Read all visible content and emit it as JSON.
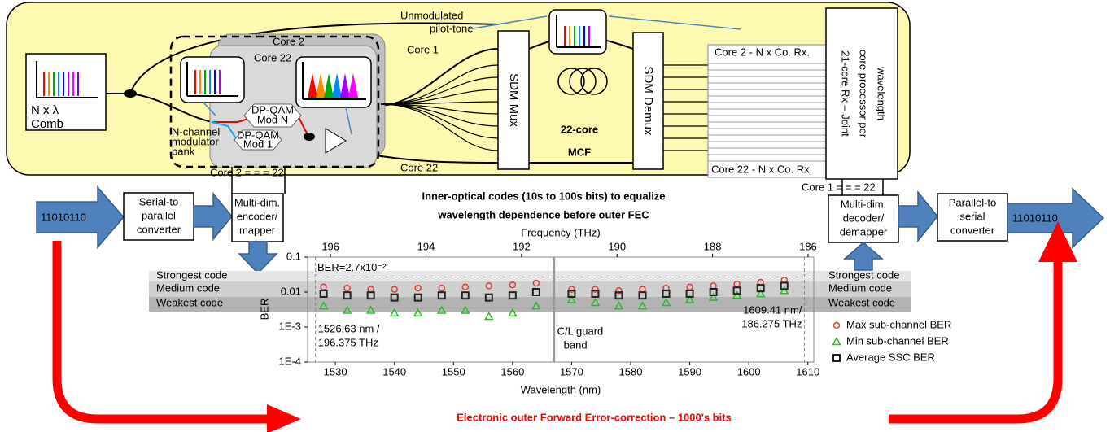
{
  "diagram": {
    "comb": [
      "N x λ",
      "Comb"
    ],
    "core2_top": "Core 2",
    "core22_top": "Core 22",
    "mod_n": [
      "DP-QAM",
      "Mod N"
    ],
    "mod_1": [
      "DP-QAM",
      "Mod 1"
    ],
    "modulator_bank": [
      "N-channel",
      "modulator",
      "bank"
    ],
    "pilot_tone": [
      "Unmodulated",
      "pilot-tone"
    ],
    "core1": "Core 1",
    "core22": "Core 22",
    "sdm_mux": "SDM Mux",
    "sdm_demux": "SDM Demux",
    "mcf": [
      "22-core",
      "MCF"
    ],
    "rx_top": "Core 2 - N x Co. Rx.",
    "rx_bottom": "Core  22 - N x Co. Rx.",
    "joint_rx": [
      "21-core Rx – Joint",
      "core processor per",
      "wavelength"
    ],
    "tx_cores": "Core 2 = = = 22",
    "rx_cores": "Core 1 = = = 22",
    "input_bits": "11010110",
    "output_bits": "11010110",
    "serial_parallel": [
      "Serial-to",
      "parallel",
      "converter"
    ],
    "encoder": [
      "Multi-dim.",
      "encoder/",
      "mapper"
    ],
    "decoder": [
      "Multi-dim.",
      "decoder/",
      "demapper"
    ],
    "parallel_serial": [
      "Parallel-to",
      "serial",
      "converter"
    ],
    "headline": [
      "Inner-optical codes (10s to 100s bits) to equalize",
      "wavelength dependence before outer FEC"
    ],
    "code_levels": [
      "Strongest code",
      "Medium code",
      "Weakest  code"
    ],
    "outer_fec": "Electronic outer Forward Error-correction – 1000's bits"
  },
  "chart_data": {
    "type": "scatter",
    "xlabel": "Wavelength (nm)",
    "x2label": "Frequency (THz)",
    "ylabel": "BER",
    "xlim": [
      1525.3,
      1611
    ],
    "xticks": [
      1530,
      1540,
      1550,
      1560,
      1570,
      1580,
      1590,
      1600,
      1610
    ],
    "x2lim": [
      196.48,
      185.88
    ],
    "x2ticks": [
      196,
      194,
      192,
      190,
      188,
      186
    ],
    "ylim": [
      0.0001,
      0.1
    ],
    "log_y": true,
    "yticks": [
      0.1,
      0.01,
      {
        "value": 0.001,
        "label": "1E-3"
      },
      {
        "value": 0.0001,
        "label": "1E-4"
      }
    ],
    "x": [
      1528,
      1532,
      1536,
      1540,
      1544,
      1548,
      1552,
      1556,
      1560,
      1564,
      1570,
      1574,
      1578,
      1582,
      1586,
      1590,
      1594,
      1598,
      1602,
      1606
    ],
    "series": [
      {
        "name": "Max sub-channel BER",
        "color": "#d9403a",
        "marker": "circle",
        "values": [
          0.014,
          0.013,
          0.012,
          0.012,
          0.013,
          0.013,
          0.014,
          0.015,
          0.016,
          0.018,
          0.012,
          0.012,
          0.011,
          0.012,
          0.013,
          0.014,
          0.015,
          0.017,
          0.019,
          0.022
        ]
      },
      {
        "name": "Min sub-channel BER",
        "color": "#2db82d",
        "marker": "triangle",
        "values": [
          0.004,
          0.003,
          0.003,
          0.0025,
          0.0025,
          0.003,
          0.003,
          0.002,
          0.0025,
          0.004,
          0.006,
          0.005,
          0.004,
          0.004,
          0.005,
          0.006,
          0.007,
          0.008,
          0.009,
          0.011
        ]
      },
      {
        "name": "Average SSC BER",
        "color": "#222222",
        "marker": "square",
        "values": [
          0.009,
          0.008,
          0.008,
          0.007,
          0.007,
          0.008,
          0.008,
          0.007,
          0.008,
          0.01,
          0.009,
          0.009,
          0.008,
          0.008,
          0.009,
          0.009,
          0.01,
          0.011,
          0.013,
          0.015
        ]
      }
    ],
    "threshold": {
      "value": 0.027,
      "label": "BER=2.7x10⁻²"
    },
    "guard_band": {
      "value": 1567,
      "label": [
        "C/L guard",
        "band"
      ]
    },
    "band_edges": [
      {
        "value": 1526.63,
        "label": [
          "1526.63 nm /",
          "196.375 THz"
        ]
      },
      {
        "value": 1609.41,
        "label": [
          "1609.41 nm/",
          "186.275 THz"
        ]
      }
    ]
  }
}
